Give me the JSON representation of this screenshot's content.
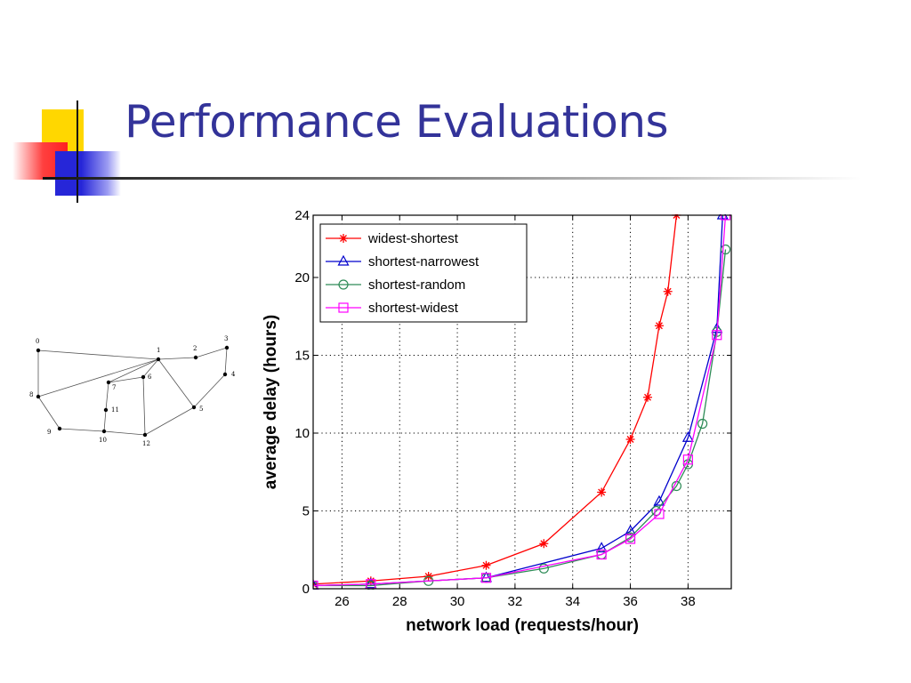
{
  "slide": {
    "title": "Performance Evaluations"
  },
  "network": {
    "nodes": [
      {
        "id": "0"
      },
      {
        "id": "1"
      },
      {
        "id": "2"
      },
      {
        "id": "3"
      },
      {
        "id": "4"
      },
      {
        "id": "5"
      },
      {
        "id": "6"
      },
      {
        "id": "7"
      },
      {
        "id": "8"
      },
      {
        "id": "9"
      },
      {
        "id": "10"
      },
      {
        "id": "11"
      },
      {
        "id": "12"
      }
    ],
    "edges": [
      [
        "0",
        "1"
      ],
      [
        "0",
        "8"
      ],
      [
        "1",
        "2"
      ],
      [
        "2",
        "3"
      ],
      [
        "3",
        "4"
      ],
      [
        "4",
        "5"
      ],
      [
        "1",
        "5"
      ],
      [
        "1",
        "7"
      ],
      [
        "8",
        "1"
      ],
      [
        "8",
        "9"
      ],
      [
        "9",
        "10"
      ],
      [
        "10",
        "12"
      ],
      [
        "12",
        "5"
      ],
      [
        "12",
        "6"
      ],
      [
        "6",
        "1"
      ],
      [
        "6",
        "7"
      ],
      [
        "7",
        "11"
      ],
      [
        "11",
        "10"
      ]
    ]
  },
  "chart_data": {
    "type": "line",
    "title": "",
    "xlabel": "network load (requests/hour)",
    "ylabel": "average delay (hours)",
    "xlim": [
      25,
      39.5
    ],
    "ylim": [
      0,
      24
    ],
    "xticks": [
      26,
      28,
      30,
      32,
      34,
      36,
      38
    ],
    "yticks": [
      0,
      5,
      10,
      15,
      20,
      24
    ],
    "grid": true,
    "legend_position": "top-left",
    "series": [
      {
        "name": "widest-shortest",
        "color": "#ff0000",
        "marker": "star",
        "x": [
          25,
          27,
          29,
          31,
          33,
          35,
          36,
          36.6,
          37,
          37.3,
          37.6
        ],
        "y": [
          0.3,
          0.5,
          0.8,
          1.5,
          2.9,
          6.2,
          9.6,
          12.3,
          16.9,
          19.1,
          24
        ]
      },
      {
        "name": "shortest-narrowest",
        "color": "#0000cc",
        "marker": "triangle",
        "x": [
          25,
          27,
          31,
          35,
          36,
          37,
          38,
          39,
          39.2
        ],
        "y": [
          0.2,
          0.3,
          0.7,
          2.6,
          3.7,
          5.6,
          9.7,
          16.7,
          24
        ]
      },
      {
        "name": "shortest-random",
        "color": "#2e8b57",
        "marker": "circle",
        "x": [
          25,
          27,
          29,
          31,
          33,
          35,
          36,
          36.9,
          37.6,
          38,
          38.5,
          39,
          39.3
        ],
        "y": [
          0.2,
          0.2,
          0.5,
          0.7,
          1.3,
          2.2,
          3.3,
          5.0,
          6.6,
          8.0,
          10.6,
          16.5,
          21.8
        ]
      },
      {
        "name": "shortest-widest",
        "color": "#ff00ff",
        "marker": "square",
        "x": [
          25,
          27,
          31,
          35,
          36,
          37,
          38,
          39,
          39.3
        ],
        "y": [
          0.2,
          0.3,
          0.7,
          2.2,
          3.2,
          4.8,
          8.3,
          16.3,
          24
        ]
      }
    ]
  }
}
